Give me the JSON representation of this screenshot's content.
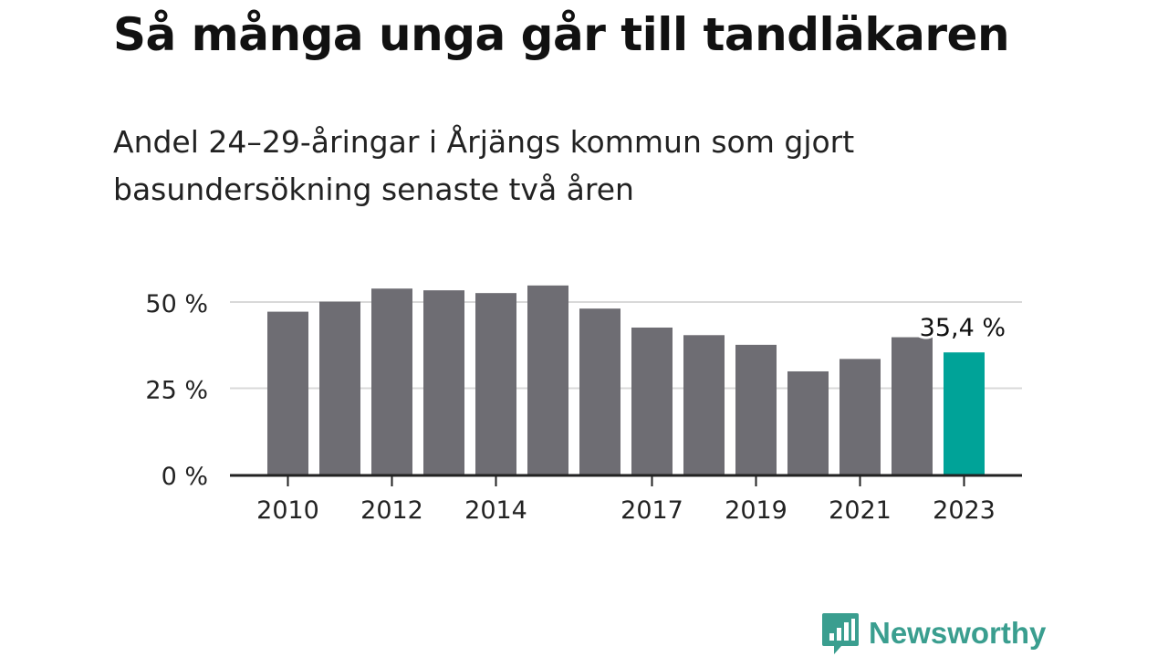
{
  "header": {
    "title": "Så många unga går till tandläkaren",
    "subtitle": "Andel 24–29-åringar i Årjängs kommun som gjort basundersökning senaste två åren"
  },
  "colors": {
    "bar": "#6e6d73",
    "highlight": "#00a398",
    "grid": "#d9d9d9",
    "axis": "#222222",
    "brand": "#3a9e8f"
  },
  "chart_data": {
    "type": "bar",
    "x": [
      2010,
      2011,
      2012,
      2013,
      2014,
      2015,
      2016,
      2017,
      2018,
      2019,
      2020,
      2021,
      2022,
      2023
    ],
    "values": [
      47.2,
      50.1,
      53.9,
      53.4,
      52.6,
      54.8,
      48.1,
      42.6,
      40.4,
      37.6,
      29.9,
      33.5,
      39.8,
      35.4
    ],
    "x_tick_labels": [
      "2010",
      "2012",
      "2014",
      "2017",
      "2019",
      "2021",
      "2023"
    ],
    "y_ticks": [
      0,
      25,
      50
    ],
    "y_tick_labels": [
      "0 %",
      "25 %",
      "50 %"
    ],
    "ylim": [
      0,
      50
    ],
    "grid": true,
    "highlight_index": 13,
    "highlight_label": "35,4 %"
  },
  "brand": {
    "name": "Newsworthy",
    "icon": "bar-chart-speech-bubble-icon"
  }
}
